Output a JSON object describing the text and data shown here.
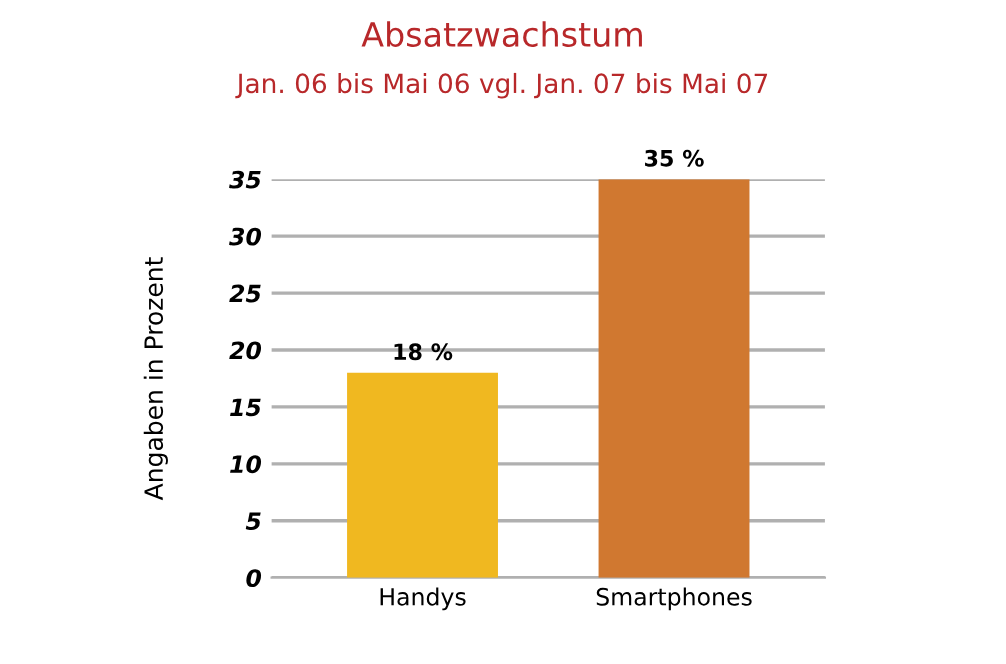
{
  "chart_data": {
    "type": "bar",
    "title": "Absatzwachstum",
    "subtitle": "Jan. 06 bis Mai 06 vgl. Jan. 07 bis Mai 07",
    "ylabel": "Angaben in Prozent",
    "categories": [
      "Handys",
      "Smartphones"
    ],
    "values": [
      18,
      35
    ],
    "colors": [
      "#f0b820",
      "#d07830"
    ],
    "value_labels": [
      "18 %",
      "35 %"
    ],
    "ylim": [
      0,
      35
    ],
    "yticks": [
      0,
      5,
      10,
      15,
      20,
      25,
      30,
      35
    ],
    "grid": "y"
  }
}
